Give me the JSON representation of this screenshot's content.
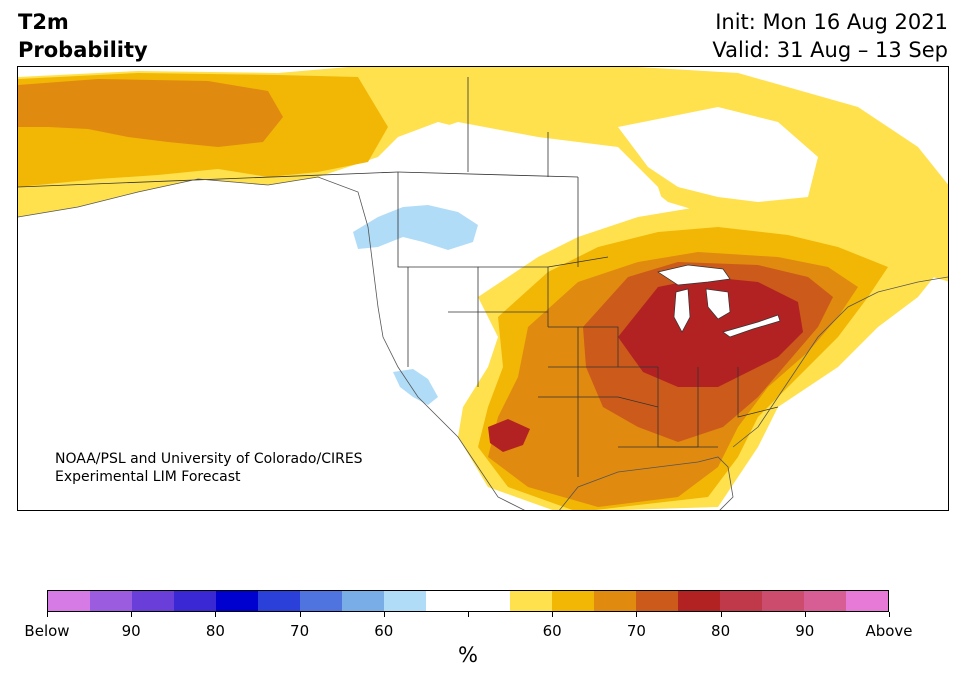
{
  "header": {
    "title_line1": "T2m",
    "title_line2": "Probability",
    "init_text": "Init: Mon 16 Aug 2021",
    "valid_text": "Valid: 31 Aug – 13 Sep"
  },
  "map": {
    "credit_line1": "NOAA/PSL and University of Colorado/CIRES",
    "credit_line2": "Experimental LIM Forecast"
  },
  "colorbar": {
    "unit": "%",
    "colors": [
      "#d67ae6",
      "#9b5ce0",
      "#6a3ed8",
      "#3a28d4",
      "#0000cf",
      "#2a40d8",
      "#4f74e0",
      "#79ade8",
      "#b0dcf8",
      "#ffffff",
      "#ffffff",
      "#ffe14d",
      "#f2b705",
      "#e08a10",
      "#cc5a1a",
      "#b22222",
      "#c0394a",
      "#cc4c6e",
      "#d65e94",
      "#e67ad6"
    ],
    "tick_labels": [
      "Below",
      "90",
      "80",
      "70",
      "60",
      "",
      "60",
      "70",
      "80",
      "90",
      "Above"
    ]
  },
  "colors": {
    "yellow": "#ffe14d",
    "gold": "#f2b705",
    "orange": "#e08a10",
    "dark_orange": "#cc5a1a",
    "red": "#b22222",
    "light_blue": "#b0dcf8",
    "boundary": "#333333"
  }
}
